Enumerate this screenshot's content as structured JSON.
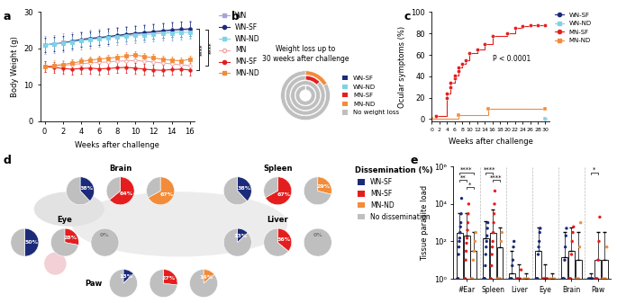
{
  "chart_data": [
    {
      "panel": "a",
      "type": "line",
      "xlabel": "Weeks after challenge",
      "ylabel": "Body Weight (g)",
      "x": [
        0,
        1,
        2,
        3,
        4,
        5,
        6,
        7,
        8,
        9,
        10,
        11,
        12,
        13,
        14,
        15,
        16
      ],
      "xlim": [
        -0.5,
        16.5
      ],
      "xticks": [
        0,
        2,
        4,
        6,
        8,
        10,
        12,
        14,
        16
      ],
      "ylim": [
        0,
        30
      ],
      "yticks": [
        0,
        10,
        20,
        30
      ],
      "legend": "upper left",
      "series": [
        {
          "name": "WN",
          "color": "#a7a3d4",
          "marker": "square",
          "values": [
            21,
            21.3,
            21.6,
            22,
            22.3,
            22.6,
            23,
            23.2,
            23.5,
            23.7,
            24,
            24.2,
            24.4,
            24.6,
            24.8,
            25,
            25.2
          ],
          "errors": [
            2.5,
            2.5,
            2.5,
            2.5,
            2.5,
            2.5,
            2.5,
            2.5,
            2.5,
            2.5,
            2.5,
            2.5,
            2.5,
            2.5,
            2.5,
            2.5,
            2.5
          ]
        },
        {
          "name": "WN-SF",
          "color": "#1c2a7a",
          "marker": "circle",
          "values": [
            21,
            21.2,
            21.5,
            22,
            22.5,
            22.8,
            23,
            23.3,
            23.6,
            23.9,
            24.2,
            24.4,
            24.6,
            24.9,
            25.1,
            25.3,
            25.4
          ],
          "errors": [
            2,
            2,
            2,
            2,
            2,
            2,
            2,
            2,
            2,
            2,
            2,
            2,
            2,
            2,
            2,
            2,
            2
          ]
        },
        {
          "name": "WN-ND",
          "color": "#7fd3e6",
          "marker": "square",
          "values": [
            21,
            21.2,
            21.4,
            21.8,
            22.1,
            22.4,
            22.7,
            23,
            23.2,
            23.4,
            23.6,
            23.8,
            24,
            24.2,
            24.3,
            24.4,
            24.5
          ],
          "errors": [
            1.5,
            1.5,
            1.5,
            1.5,
            1.5,
            1.5,
            1.5,
            1.5,
            1.5,
            1.5,
            1.5,
            1.5,
            1.5,
            1.5,
            1.5,
            1.5,
            1.5
          ]
        },
        {
          "name": "MN",
          "color": "#f2a5a5",
          "marker": "open_circle",
          "values": [
            15,
            15.2,
            15.3,
            15.6,
            15.8,
            16,
            16.2,
            16.3,
            16.5,
            16.6,
            16.7,
            16.5,
            16.3,
            16,
            15.8,
            15.5,
            15.3
          ],
          "errors": [
            1.5,
            1.5,
            1.5,
            1.5,
            1.5,
            1.5,
            1.5,
            1.5,
            1.5,
            1.5,
            1.5,
            1.5,
            1.5,
            1.5,
            1.5,
            1.5,
            1.5
          ]
        },
        {
          "name": "MN-SF",
          "color": "#e41e1e",
          "marker": "circle",
          "values": [
            15,
            14.8,
            14.5,
            14.3,
            14.5,
            14.6,
            14.4,
            14.5,
            14.7,
            14.8,
            14.6,
            14.3,
            14.1,
            14,
            14.2,
            14.3,
            14.1
          ],
          "errors": [
            1.5,
            1.5,
            1.5,
            1.5,
            1.5,
            1.5,
            1.5,
            1.5,
            1.5,
            1.5,
            1.5,
            1.5,
            1.5,
            1.5,
            1.5,
            1.5,
            1.5
          ]
        },
        {
          "name": "MN-ND",
          "color": "#f28c3a",
          "marker": "square",
          "values": [
            15,
            15.3,
            15.6,
            16,
            16.4,
            16.8,
            17.1,
            17.3,
            17.6,
            17.9,
            18.2,
            17.8,
            17.4,
            17,
            16.8,
            16.6,
            17
          ],
          "errors": [
            1,
            1,
            1,
            1,
            1,
            1,
            1,
            1,
            1,
            1,
            1,
            1,
            1,
            1,
            1,
            1,
            1
          ]
        }
      ],
      "annotations": [
        {
          "text": "****",
          "between": [
            "WN-SF",
            "MN-SF"
          ]
        },
        {
          "text": "****",
          "between": [
            "WN",
            "MN"
          ]
        }
      ]
    },
    {
      "panel": "b",
      "type": "donut",
      "title": "Weight loss up to\n30 weeks after challenge",
      "legend": "center left",
      "rings": [
        {
          "name": "MN-ND",
          "values": [
            17,
            83
          ]
        },
        {
          "name": "MN-SF",
          "values": [
            13,
            87
          ]
        },
        {
          "name": "WN-ND",
          "values": [
            0,
            100
          ]
        },
        {
          "name": "WN-SF",
          "values": [
            1,
            99
          ]
        }
      ],
      "series": [
        {
          "name": "WN-SF",
          "color": "#1c2a7a"
        },
        {
          "name": "WN-ND",
          "color": "#7fd3e6"
        },
        {
          "name": "MN-SF",
          "color": "#e41e1e"
        },
        {
          "name": "MN-ND",
          "color": "#f28c3a"
        },
        {
          "name": "No weight loss",
          "color": "#bfbfbf"
        }
      ]
    },
    {
      "panel": "c",
      "type": "line",
      "line_style": "steps",
      "xlabel": "Weeks after challenge",
      "ylabel": "Ocular symptoms (%)",
      "xlim": [
        0,
        31
      ],
      "xticks": [
        0,
        2,
        4,
        6,
        8,
        10,
        12,
        14,
        16,
        18,
        20,
        22,
        24,
        26,
        28,
        30
      ],
      "ylim": [
        -2,
        100
      ],
      "yticks": [
        0,
        20,
        40,
        60,
        80,
        100
      ],
      "legend": "upper left",
      "annotations": [
        {
          "text": "P < 0.0001"
        }
      ],
      "series": [
        {
          "name": "WN-SF",
          "color": "#1c2a7a",
          "marker": "circle",
          "x": [
            30
          ],
          "values": [
            0
          ]
        },
        {
          "name": "WN-ND",
          "color": "#7fd3e6",
          "marker": "square",
          "x": [
            30
          ],
          "values": [
            0
          ]
        },
        {
          "name": "MN-SF",
          "color": "#e41e1e",
          "marker": "circle",
          "x": [
            0,
            1,
            4,
            4,
            5,
            5,
            6,
            6,
            7,
            7,
            8,
            9,
            10,
            12,
            14,
            16,
            20,
            22,
            24,
            26,
            28,
            30
          ],
          "values": [
            0,
            3,
            20,
            24,
            30,
            34,
            38,
            41,
            45,
            48,
            52,
            55,
            62,
            65,
            70,
            78,
            80,
            85,
            87,
            88,
            88,
            88
          ]
        },
        {
          "name": "MN-ND",
          "color": "#f28c3a",
          "marker": "square",
          "x": [
            0,
            7,
            15,
            30
          ],
          "values": [
            0,
            4,
            10,
            10
          ]
        }
      ]
    },
    {
      "panel": "d",
      "type": "pie",
      "title": "Dissemination (%)",
      "legend": "upper left",
      "series": [
        {
          "name": "WN-SF",
          "color": "#1c2a7a"
        },
        {
          "name": "MN-SF",
          "color": "#e41e1e"
        },
        {
          "name": "MN-ND",
          "color": "#f28c3a"
        },
        {
          "name": "No dissemination",
          "color": "#bfbfbf"
        }
      ],
      "organs": [
        {
          "name": "Brain",
          "values": [
            38,
            64,
            67
          ],
          "rest": [
            62,
            36,
            33
          ],
          "value_labels": [
            "38%",
            "64%",
            "67%"
          ]
        },
        {
          "name": "Spleen",
          "values": [
            38,
            67,
            29
          ],
          "rest": [
            62,
            33,
            71
          ],
          "value_labels": [
            "38%",
            "67%",
            "29%"
          ]
        },
        {
          "name": "Eye",
          "values": [
            50,
            28,
            0
          ],
          "rest": [
            50,
            72,
            100
          ],
          "value_labels": [
            "50%",
            "28%",
            "0%"
          ]
        },
        {
          "name": "Liver",
          "values": [
            13,
            36,
            0
          ],
          "rest": [
            87,
            64,
            100
          ],
          "value_labels": [
            "13%",
            "36%",
            "0%"
          ]
        },
        {
          "name": "Paw",
          "values": [
            13,
            27,
            14
          ],
          "rest": [
            87,
            73,
            86
          ],
          "value_labels": [
            "13%",
            "27%",
            "14%"
          ]
        }
      ]
    },
    {
      "panel": "e",
      "type": "bar",
      "ylabel": "Tissue parasite load",
      "log": "y",
      "categories": [
        "#Ear",
        "Spleen",
        "Liver",
        "Eye",
        "Brain",
        "Paw"
      ],
      "ylim": [
        1,
        1000000
      ],
      "yticks": [
        {
          "value": 1,
          "label": "10⁰"
        },
        {
          "value": 100,
          "label": "10²"
        },
        {
          "value": 10000,
          "label": "10⁴"
        },
        {
          "value": 1000000,
          "label": "10⁶"
        }
      ],
      "series": [
        {
          "name": "WN-SF",
          "color": "#1c2a7a",
          "values": [
            300,
            150,
            2,
            30,
            15,
            1
          ],
          "errors": [
            3000,
            1000,
            30,
            500,
            300,
            1
          ],
          "points": [
            [
              1,
              1,
              1,
              20,
              50,
              100,
              150,
              300,
              600,
              1000,
              3000,
              20000
            ],
            [
              1,
              1,
              1,
              1,
              5,
              20,
              50,
              100,
              200,
              500,
              1000
            ],
            [
              1,
              1,
              1,
              1,
              5,
              10,
              50,
              100
            ],
            [
              1,
              1,
              1,
              1,
              20,
              50,
              100,
              300,
              500
            ],
            [
              1,
              1,
              1,
              1,
              10,
              50,
              200,
              500
            ],
            [
              1,
              1,
              1,
              1,
              1
            ]
          ]
        },
        {
          "name": "MN-SF",
          "color": "#e41e1e",
          "values": [
            200,
            300,
            1,
            1,
            30,
            10
          ],
          "errors": [
            3000,
            5000,
            5,
            5,
            500,
            300
          ],
          "points": [
            [
              1,
              1,
              1,
              10,
              30,
              80,
              150,
              400,
              1000,
              3000,
              10000
            ],
            [
              1,
              1,
              5,
              20,
              50,
              100,
              300,
              1000,
              3000,
              10000,
              50000
            ],
            [
              1,
              1,
              1,
              1,
              3
            ],
            [
              1,
              1,
              1,
              1,
              1
            ],
            [
              1,
              1,
              1,
              20,
              100,
              300,
              600
            ],
            [
              1,
              1,
              1,
              10,
              100,
              2000
            ]
          ]
        },
        {
          "name": "MN-ND",
          "color": "#f28c3a",
          "values": [
            30,
            50,
            1,
            1,
            10,
            10
          ],
          "errors": [
            300,
            500,
            1,
            1,
            300,
            300
          ],
          "points": [
            [
              1,
              1,
              10,
              30,
              100,
              300
            ],
            [
              1,
              1,
              1,
              1,
              100,
              300
            ],
            [
              1,
              1,
              1
            ],
            [
              1,
              1,
              1
            ],
            [
              1,
              1,
              1,
              50,
              1000
            ],
            [
              1,
              1,
              1,
              50
            ]
          ]
        }
      ],
      "significance": [
        {
          "category": "#Ear",
          "from": "WN-SF",
          "to": "MN-ND",
          "label": "****"
        },
        {
          "category": "#Ear",
          "from": "WN-SF",
          "to": "MN-SF",
          "label": "**"
        },
        {
          "category": "#Ear",
          "from": "MN-SF",
          "to": "MN-ND",
          "label": "*"
        },
        {
          "category": "Spleen",
          "from": "WN-SF",
          "to": "MN-SF",
          "label": "****"
        },
        {
          "category": "Spleen",
          "from": "MN-SF",
          "to": "MN-ND",
          "label": "****"
        },
        {
          "category": "Paw",
          "from": "WN-SF",
          "to": "MN-SF",
          "label": "*"
        }
      ]
    }
  ]
}
